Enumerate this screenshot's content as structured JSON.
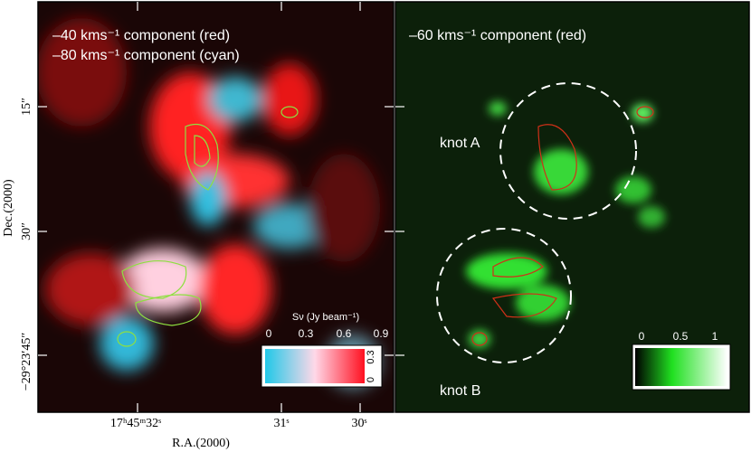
{
  "left_panel": {
    "labels": [
      "–40 kms⁻¹ component (red)",
      "–80 kms⁻¹ component (cyan)"
    ],
    "colorbar": {
      "title": "Sν (Jy beam⁻¹)",
      "ticks": [
        "0",
        "0.3",
        "0.6",
        "0.9"
      ],
      "side_ticks": [
        "0.3",
        "0"
      ]
    }
  },
  "right_panel": {
    "labels": [
      "–60 kms⁻¹ component (red)"
    ],
    "knots": [
      "knot A",
      "knot B"
    ],
    "colorbar": {
      "ticks": [
        "0",
        "0.5",
        "1"
      ]
    }
  },
  "y_axis": {
    "title": "Dec.(2000)",
    "ticks": [
      "15″",
      "30″",
      "−29°23′45″"
    ]
  },
  "x_axis": {
    "title": "R.A.(2000)",
    "ticks": [
      "17ʰ45ᵐ32ˢ",
      "31ˢ",
      "30ˢ"
    ]
  }
}
